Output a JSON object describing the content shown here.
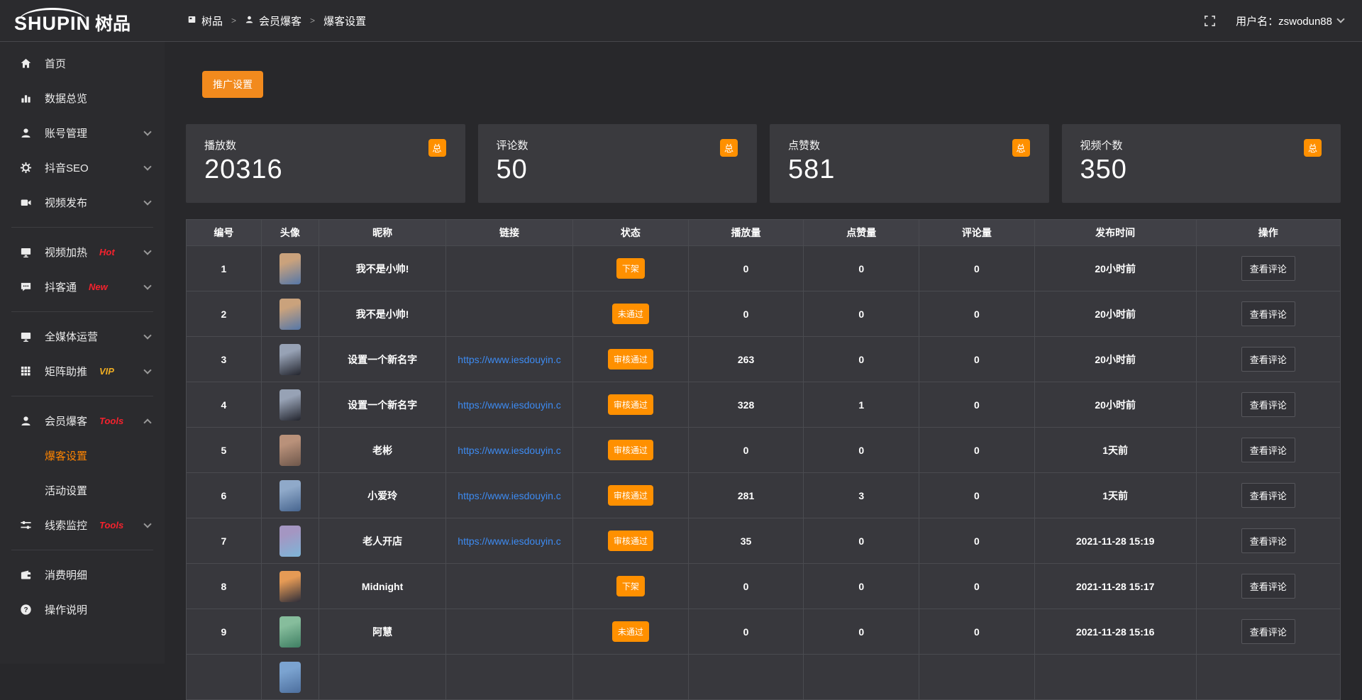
{
  "brand": {
    "name_en": "SHUPIN",
    "name_cn": "树品"
  },
  "topbar": {
    "breadcrumb": [
      {
        "icon": "dashboard-icon",
        "label": "树品"
      },
      {
        "icon": "user-icon",
        "label": "会员爆客"
      },
      {
        "label": "爆客设置"
      }
    ],
    "separator": ">",
    "username": "用户名：zswodun88"
  },
  "sidebar": {
    "items": [
      {
        "key": "home",
        "icon": "home-icon",
        "label": "首页"
      },
      {
        "key": "data-overview",
        "icon": "bar-chart-icon",
        "label": "数据总览"
      },
      {
        "key": "account-manage",
        "icon": "user-icon",
        "label": "账号管理",
        "chevron": "down"
      },
      {
        "key": "douyin-seo",
        "icon": "gear-icon",
        "label": "抖音SEO",
        "chevron": "down"
      },
      {
        "key": "video-publish",
        "icon": "video-icon",
        "label": "视频发布",
        "chevron": "down"
      },
      {
        "divider": true
      },
      {
        "key": "video-heat",
        "icon": "monitor-icon",
        "label": "视频加热",
        "tag": "Hot",
        "tag_color": "red",
        "chevron": "down"
      },
      {
        "key": "douketong",
        "icon": "message-icon",
        "label": "抖客通",
        "tag": "New",
        "tag_color": "red",
        "chevron": "down"
      },
      {
        "divider": true
      },
      {
        "key": "omni-media",
        "icon": "monitor-icon",
        "label": "全媒体运营",
        "chevron": "down"
      },
      {
        "key": "matrix-boost",
        "icon": "grid-icon",
        "label": "矩阵助推",
        "tag": "VIP",
        "tag_color": "gold",
        "chevron": "down"
      },
      {
        "divider": true
      },
      {
        "key": "member-baoke",
        "icon": "user-icon",
        "label": "会员爆客",
        "tag": "Tools",
        "tag_color": "red",
        "chevron": "up",
        "children": [
          {
            "key": "baoke-settings",
            "label": "爆客设置",
            "active": true
          },
          {
            "key": "activity-settings",
            "label": "活动设置",
            "active": false
          }
        ]
      },
      {
        "key": "clue-monitor",
        "icon": "sliders-icon",
        "label": "线索监控",
        "tag": "Tools",
        "tag_color": "red",
        "chevron": "down"
      },
      {
        "divider": true
      },
      {
        "key": "consume-detail",
        "icon": "wallet-icon",
        "label": "消费明细"
      },
      {
        "key": "operation-guide",
        "icon": "question-icon",
        "label": "操作说明"
      }
    ]
  },
  "toolbar": {
    "promo_label": "推广设置"
  },
  "stats": [
    {
      "label": "播放数",
      "value": "20316",
      "badge": "总"
    },
    {
      "label": "评论数",
      "value": "50",
      "badge": "总"
    },
    {
      "label": "点赞数",
      "value": "581",
      "badge": "总"
    },
    {
      "label": "视频个数",
      "value": "350",
      "badge": "总"
    }
  ],
  "table": {
    "columns": [
      "编号",
      "头像",
      "昵称",
      "链接",
      "状态",
      "播放量",
      "点赞量",
      "评论量",
      "发布时间",
      "操作"
    ],
    "action_label": "查看评论",
    "rows": [
      {
        "id": "1",
        "avatar_colors": [
          "#caa27c",
          "#5577a8"
        ],
        "nickname": "我不是小帅!",
        "link": "",
        "status": "下架",
        "plays": "0",
        "likes": "0",
        "comments": "0",
        "published": "20小时前"
      },
      {
        "id": "2",
        "avatar_colors": [
          "#caa27c",
          "#5577a8"
        ],
        "nickname": "我不是小帅!",
        "link": "",
        "status": "未通过",
        "plays": "0",
        "likes": "0",
        "comments": "0",
        "published": "20小时前"
      },
      {
        "id": "3",
        "avatar_colors": [
          "#97a2b5",
          "#23252e"
        ],
        "nickname": "设置一个新名字",
        "link": "https://www.iesdouyin.c",
        "status": "审核通过",
        "plays": "263",
        "likes": "0",
        "comments": "0",
        "published": "20小时前"
      },
      {
        "id": "4",
        "avatar_colors": [
          "#97a2b5",
          "#23252e"
        ],
        "nickname": "设置一个新名字",
        "link": "https://www.iesdouyin.c",
        "status": "审核通过",
        "plays": "328",
        "likes": "1",
        "comments": "0",
        "published": "20小时前"
      },
      {
        "id": "5",
        "avatar_colors": [
          "#b9917a",
          "#6e574b"
        ],
        "nickname": "老彬",
        "link": "https://www.iesdouyin.c",
        "status": "审核通过",
        "plays": "0",
        "likes": "0",
        "comments": "0",
        "published": "1天前"
      },
      {
        "id": "6",
        "avatar_colors": [
          "#8fa9c9",
          "#47658f"
        ],
        "nickname": "小爱玲",
        "link": "https://www.iesdouyin.c",
        "status": "审核通过",
        "plays": "281",
        "likes": "3",
        "comments": "0",
        "published": "1天前"
      },
      {
        "id": "7",
        "avatar_colors": [
          "#a496c2",
          "#7db5d8"
        ],
        "nickname": "老人开店",
        "link": "https://www.iesdouyin.c",
        "status": "审核通过",
        "plays": "35",
        "likes": "0",
        "comments": "0",
        "published": "2021-11-28 15:19"
      },
      {
        "id": "8",
        "avatar_colors": [
          "#e59a55",
          "#2e2e3a"
        ],
        "nickname": "Midnight",
        "link": "",
        "status": "下架",
        "plays": "0",
        "likes": "0",
        "comments": "0",
        "published": "2021-11-28 15:17"
      },
      {
        "id": "9",
        "avatar_colors": [
          "#86bd9c",
          "#3f7f63"
        ],
        "nickname": "阿慧",
        "link": "",
        "status": "未通过",
        "plays": "0",
        "likes": "0",
        "comments": "0",
        "published": "2021-11-28 15:16"
      }
    ],
    "partial_row": {
      "avatar_colors": [
        "#7ba3d0",
        "#4d6f9e"
      ]
    }
  },
  "colors": {
    "accent_orange": "#f28a1d",
    "badge_orange": "#ff9000",
    "active_menu_orange": "#ff8400",
    "link_blue": "#3d8bf2",
    "tag_red": "#f5222d",
    "tag_gold": "#efad23"
  }
}
